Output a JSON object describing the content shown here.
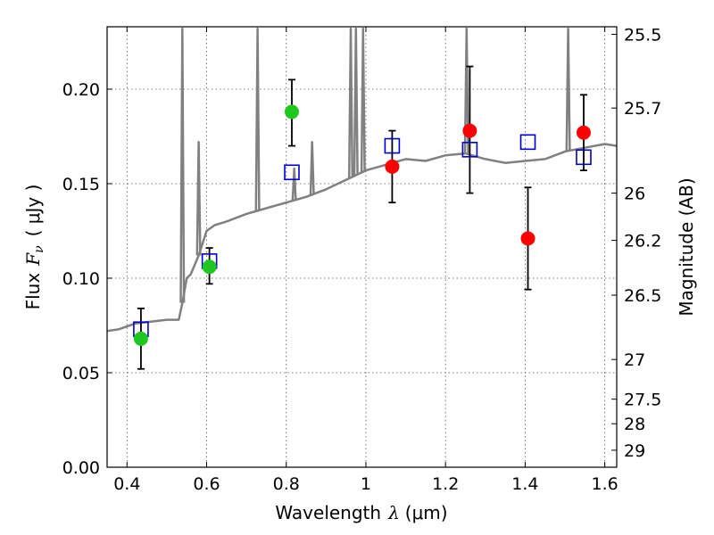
{
  "chart_data": {
    "type": "scatter",
    "title": "",
    "xlabel": {
      "prefix": "Wavelength",
      "symbol": "λ",
      "unit": "(μm)"
    },
    "ylabel": {
      "prefix": "Flux",
      "symbol": "F",
      "subscript": "ν",
      "unit": "( μJy )"
    },
    "y2label": "Magnitude (AB)",
    "xlim": [
      0.35,
      1.63
    ],
    "ylim": [
      0.0,
      0.233
    ],
    "grid": true,
    "x_ticks": [
      {
        "value": 0.4,
        "label": "0.4"
      },
      {
        "value": 0.6,
        "label": "0.6"
      },
      {
        "value": 0.8,
        "label": "0.8"
      },
      {
        "value": 1.0,
        "label": "1"
      },
      {
        "value": 1.2,
        "label": "1.2"
      },
      {
        "value": 1.4,
        "label": "1.4"
      },
      {
        "value": 1.6,
        "label": "1.6"
      }
    ],
    "y_ticks": [
      {
        "value": 0.0,
        "label": "0.00"
      },
      {
        "value": 0.05,
        "label": "0.05"
      },
      {
        "value": 0.1,
        "label": "0.10"
      },
      {
        "value": 0.15,
        "label": "0.15"
      },
      {
        "value": 0.2,
        "label": "0.20"
      }
    ],
    "y2_ticks": [
      {
        "label": "25.5",
        "flux": 0.229
      },
      {
        "label": "25.7",
        "flux": 0.19
      },
      {
        "label": "26",
        "flux": 0.145
      },
      {
        "label": "26.2",
        "flux": 0.12
      },
      {
        "label": "26.5",
        "flux": 0.091
      },
      {
        "label": "27",
        "flux": 0.057
      },
      {
        "label": "27.5",
        "flux": 0.036
      },
      {
        "label": "28",
        "flux": 0.023
      },
      {
        "label": "29",
        "flux": 0.009
      }
    ],
    "colors": {
      "model": "#808080",
      "green": "#1ec81e",
      "red": "#ff0000",
      "square": "#0000cc",
      "errorbar": "#000000",
      "grid": "#555555"
    },
    "model_spectrum": {
      "x": [
        0.35,
        0.38,
        0.42,
        0.46,
        0.5,
        0.53,
        0.54,
        0.55,
        0.56,
        0.58,
        0.6,
        0.62,
        0.65,
        0.7,
        0.75,
        0.8,
        0.85,
        0.9,
        0.95,
        1.0,
        1.05,
        1.1,
        1.15,
        1.2,
        1.25,
        1.3,
        1.35,
        1.4,
        1.45,
        1.5,
        1.55,
        1.6,
        1.63
      ],
      "y": [
        0.072,
        0.073,
        0.076,
        0.077,
        0.078,
        0.078,
        0.088,
        0.1,
        0.102,
        0.112,
        0.125,
        0.128,
        0.13,
        0.134,
        0.137,
        0.14,
        0.143,
        0.147,
        0.152,
        0.157,
        0.16,
        0.163,
        0.162,
        0.165,
        0.166,
        0.163,
        0.161,
        0.162,
        0.163,
        0.167,
        0.169,
        0.171,
        0.17
      ]
    },
    "emission_lines": [
      {
        "x": 0.539,
        "peak": 0.232
      },
      {
        "x": 0.58,
        "peak": 0.172
      },
      {
        "x": 0.728,
        "peak": 0.232
      },
      {
        "x": 0.82,
        "peak": 0.158
      },
      {
        "x": 0.865,
        "peak": 0.172
      },
      {
        "x": 0.962,
        "peak": 0.232
      },
      {
        "x": 0.975,
        "peak": 0.232
      },
      {
        "x": 0.993,
        "peak": 0.232
      },
      {
        "x": 1.253,
        "peak": 0.232
      },
      {
        "x": 1.508,
        "peak": 0.232
      }
    ],
    "green_points": [
      {
        "x": 0.435,
        "y": 0.068,
        "err": [
          0.052,
          0.084
        ]
      },
      {
        "x": 0.607,
        "y": 0.106,
        "err": [
          0.097,
          0.116
        ]
      },
      {
        "x": 0.814,
        "y": 0.188,
        "err": [
          0.17,
          0.205
        ]
      }
    ],
    "red_points": [
      {
        "x": 1.066,
        "y": 0.159,
        "err": [
          0.14,
          0.178
        ]
      },
      {
        "x": 1.261,
        "y": 0.178,
        "err": [
          0.145,
          0.212
        ]
      },
      {
        "x": 1.407,
        "y": 0.121,
        "err": [
          0.094,
          0.148
        ]
      },
      {
        "x": 1.547,
        "y": 0.177,
        "err": [
          0.157,
          0.197
        ]
      }
    ],
    "square_points": [
      {
        "x": 0.435,
        "y": 0.073
      },
      {
        "x": 0.607,
        "y": 0.109
      },
      {
        "x": 0.814,
        "y": 0.156
      },
      {
        "x": 1.066,
        "y": 0.17
      },
      {
        "x": 1.261,
        "y": 0.168
      },
      {
        "x": 1.407,
        "y": 0.172
      },
      {
        "x": 1.547,
        "y": 0.164
      }
    ]
  }
}
